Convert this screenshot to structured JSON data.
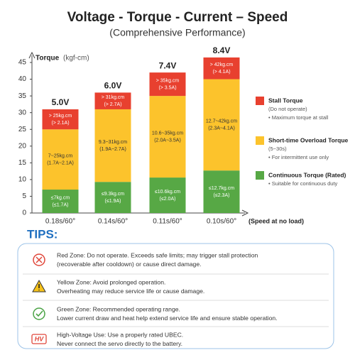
{
  "title": "Voltage - Torque - Current – Speed",
  "subtitle": "(Comprehensive Performance)",
  "chart_data": {
    "type": "stacked_bar",
    "ylabel": "Torque",
    "yunit": "(kgf-cm)",
    "xlabel": "(Speed at no load)",
    "categories": [
      "0.18s/60°",
      "0.14s/60°",
      "0.11s/60°",
      "0.10s/60°"
    ],
    "bar_labels": [
      "5.0V",
      "6.0V",
      "7.4V",
      "8.4V"
    ],
    "ylim": [
      0,
      45
    ],
    "yticks": [
      0,
      5,
      10,
      15,
      20,
      25,
      30,
      35,
      40,
      45
    ],
    "series": [
      {
        "name": "Continuous Torque (Rated)",
        "color": "#57a845",
        "notes": [
          "• Suitable for continuous duty"
        ],
        "values": [
          7,
          9.3,
          10.6,
          12.7
        ],
        "torque_labels": [
          "≤7kg.cm",
          "≤9.3kg.cm",
          "≤10.6kg.cm",
          "≤12.7kg.cm"
        ],
        "current_labels": [
          "(≤1.7A)",
          "(≤1.9A)",
          "(≤2.0A)",
          "(≤2.3A)"
        ]
      },
      {
        "name": "Short-time Overload Torque",
        "color": "#fcc32c",
        "notes": [
          "(5~30s)",
          "• For intermittent use only"
        ],
        "values": [
          18,
          21.7,
          24.4,
          27.3
        ],
        "torque_labels": [
          "7~25kg.cm",
          "9.3~31kg.cm",
          "10.6~35kg.cm",
          "12.7~42kg.cm"
        ],
        "current_labels": [
          "(1.7A~2.1A)",
          "(1.9A~2.7A)",
          "(2.0A~3.5A)",
          "(2.3A~4.1A)"
        ]
      },
      {
        "name": "Stall Torque",
        "color": "#e8402f",
        "notes": [
          "(Do not operate)",
          "• Maximum torque at stall"
        ],
        "values": [
          6,
          5,
          7,
          6.5
        ],
        "torque_labels": [
          "> 25kg.cm",
          "> 31kg.cm",
          "> 35kg.cm",
          "> 42kg.cm"
        ],
        "current_labels": [
          "(> 2.1A)",
          "(> 2.7A)",
          "(> 3.5A)",
          "(> 4.1A)"
        ]
      }
    ]
  },
  "tips": {
    "title": "TIPS:",
    "items": [
      {
        "lines": [
          "Red Zone: Do not operate. Exceeds safe limits; may trigger stall protection",
          " (recoverable after cooldown) or cause direct damage."
        ]
      },
      {
        "lines": [
          "Yellow Zone: Avoid prolonged operation.",
          "Overheating may reduce service life or cause damage."
        ]
      },
      {
        "lines": [
          "Green Zone: Recommended operating range.",
          "Lower current draw and heat help extend service life and ensure stable operation."
        ]
      },
      {
        "icon_text": "HV",
        "lines": [
          "High-Voltage Use: Use a properly rated UBEC.",
          "Never connect the servo directly to the battery."
        ]
      }
    ]
  }
}
